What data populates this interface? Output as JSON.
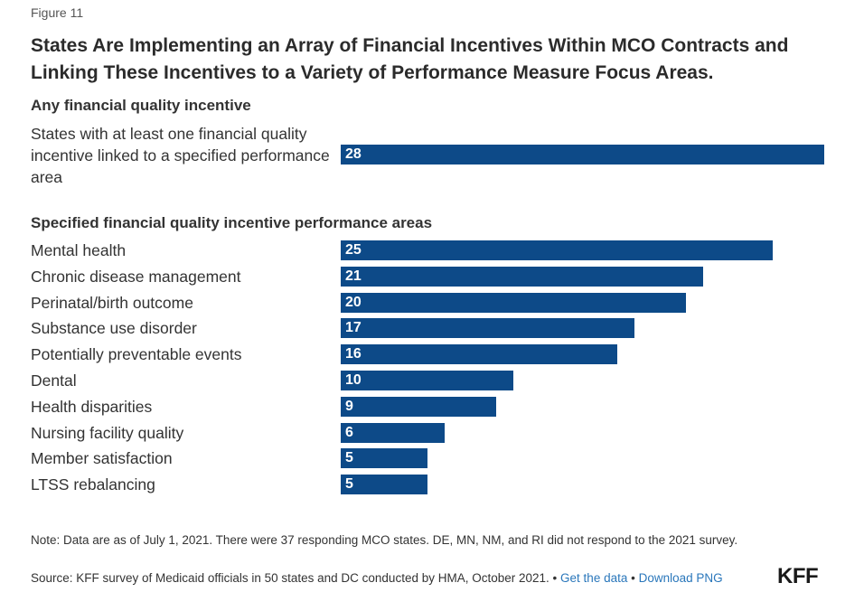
{
  "figure_label": "Figure 11",
  "title": "States Are Implementing an Array of Financial Incentives Within MCO Contracts and Linking These Incentives to a Variety of Performance Measure Focus Areas.",
  "chart_data": {
    "type": "bar",
    "orientation": "horizontal",
    "bar_color": "#0d4a88",
    "xlim": [
      0,
      28
    ],
    "groups": [
      {
        "heading": "Any financial quality incentive",
        "categories": [
          "States with at least one financial quality incentive linked to a specified performance area"
        ],
        "values": [
          28
        ]
      },
      {
        "heading": "Specified financial quality incentive performance areas",
        "categories": [
          "Mental health",
          "Chronic disease management",
          "Perinatal/birth outcome",
          "Substance use disorder",
          "Potentially preventable events",
          "Dental",
          "Health disparities",
          "Nursing facility quality",
          "Member satisfaction",
          "LTSS rebalancing"
        ],
        "values": [
          25,
          21,
          20,
          17,
          16,
          10,
          9,
          6,
          5,
          5
        ]
      }
    ]
  },
  "note": "Note: Data are as of July 1, 2021. There were 37 responding MCO states. DE, MN, NM, and RI did not respond to the 2021 survey.",
  "source": "Source: KFF survey of Medicaid officials in 50 states and DC conducted by HMA, October 2021.",
  "separator": "•",
  "links": {
    "get_data": "Get the data",
    "download_png": "Download PNG"
  },
  "logo": "KFF"
}
